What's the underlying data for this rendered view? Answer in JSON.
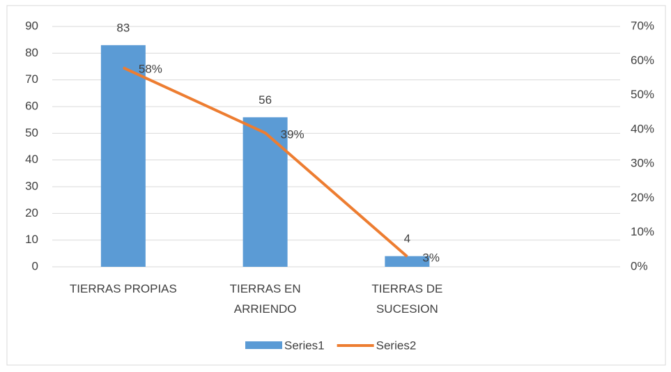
{
  "chart_data": {
    "type": "bar-line",
    "categories": [
      "TIERRAS PROPIAS",
      "TIERRAS EN ARRIENDO",
      "TIERRAS DE SUCESION",
      null
    ],
    "series": [
      {
        "name": "Series1",
        "type": "bar",
        "color": "#5b9bd5",
        "values": [
          83,
          56,
          4,
          null
        ]
      },
      {
        "name": "Series2",
        "type": "line",
        "axis": "y2",
        "color": "#ed7d31",
        "values": [
          58,
          39,
          3,
          null
        ],
        "value_labels": [
          "58%",
          "39%",
          "3%",
          null
        ]
      }
    ],
    "ylim": [
      0,
      90
    ],
    "yticks": [
      0,
      10,
      20,
      30,
      40,
      50,
      60,
      70,
      80,
      90
    ],
    "y2lim": [
      0,
      70
    ],
    "y2ticks": [
      {
        "value": 0,
        "label": "0%"
      },
      {
        "value": 10,
        "label": "10%"
      },
      {
        "value": 20,
        "label": "20%"
      },
      {
        "value": 30,
        "label": "30%"
      },
      {
        "value": 40,
        "label": "40%"
      },
      {
        "value": 50,
        "label": "50%"
      },
      {
        "value": 60,
        "label": "60%"
      },
      {
        "value": 70,
        "label": "70%"
      }
    ],
    "grid": true,
    "legend": "bottom"
  }
}
